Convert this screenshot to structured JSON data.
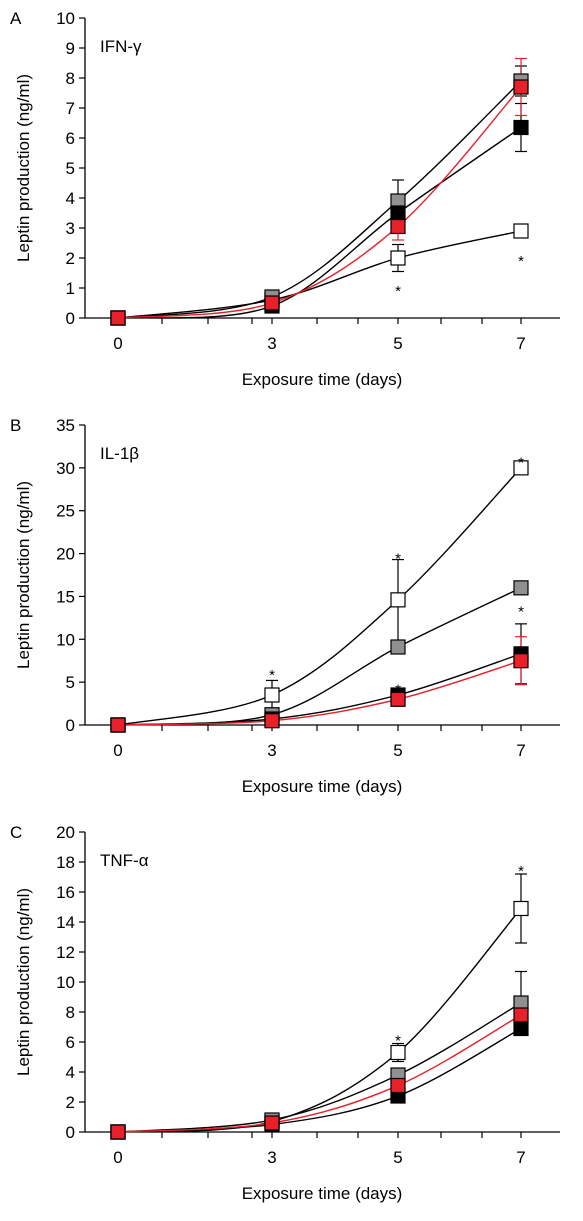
{
  "chart_data": [
    {
      "type": "line",
      "panel_letter": "A",
      "title": "IFN-γ",
      "xlabel": "Exposure time (days)",
      "ylabel": "Leptin production (ng/ml)",
      "x": [
        0,
        3,
        5,
        7
      ],
      "x_ticks": [
        0,
        3,
        5,
        7
      ],
      "y_ticks": [
        0,
        1,
        2,
        3,
        4,
        5,
        6,
        7,
        8,
        9,
        10
      ],
      "ylim": [
        0,
        10
      ],
      "grid": false,
      "series": [
        {
          "marker": "white",
          "values": [
            0,
            0.6,
            2.0,
            2.9
          ],
          "err": [
            0,
            0,
            0.45,
            0
          ]
        },
        {
          "marker": "gray",
          "values": [
            0,
            0.7,
            3.9,
            7.9
          ],
          "err": [
            0,
            0,
            0.7,
            0.5
          ]
        },
        {
          "marker": "black",
          "values": [
            0,
            0.4,
            3.5,
            6.35
          ],
          "err": [
            0,
            0,
            0.55,
            0.8
          ]
        },
        {
          "marker": "red",
          "values": [
            0,
            0.5,
            3.05,
            7.7
          ],
          "err": [
            0,
            0,
            0.45,
            0.95
          ]
        }
      ],
      "significance": [
        {
          "x": 5,
          "y": 1.0,
          "text": "*"
        },
        {
          "x": 7,
          "y": 2.0,
          "text": "*"
        }
      ]
    },
    {
      "type": "line",
      "panel_letter": "B",
      "title": "IL-1β",
      "xlabel": "Exposure time (days)",
      "ylabel": "Leptin production (ng/ml)",
      "x": [
        0,
        3,
        5,
        7
      ],
      "x_ticks": [
        0,
        3,
        5,
        7
      ],
      "y_ticks": [
        0,
        5,
        10,
        15,
        20,
        25,
        30,
        35
      ],
      "ylim": [
        0,
        35
      ],
      "grid": false,
      "series": [
        {
          "marker": "white",
          "values": [
            0,
            3.5,
            14.6,
            30.0
          ],
          "err": [
            0,
            1.7,
            4.7,
            0
          ]
        },
        {
          "marker": "gray",
          "values": [
            0,
            1.2,
            9.1,
            16.0
          ],
          "err": [
            0,
            0,
            0.6,
            0
          ]
        },
        {
          "marker": "black",
          "values": [
            0,
            0.7,
            3.5,
            8.3
          ],
          "err": [
            0,
            0,
            0,
            3.5
          ]
        },
        {
          "marker": "red",
          "values": [
            0,
            0.5,
            3.0,
            7.5
          ],
          "err": [
            0,
            0,
            0,
            2.8
          ]
        }
      ],
      "significance": [
        {
          "x": 3,
          "y": 6.2,
          "text": "*"
        },
        {
          "x": 5,
          "y": 19.8,
          "text": "*"
        },
        {
          "x": 5,
          "y": 4.5,
          "text": "*"
        },
        {
          "x": 7,
          "y": 31.0,
          "text": "*"
        },
        {
          "x": 7,
          "y": 13.6,
          "text": "*"
        }
      ]
    },
    {
      "type": "line",
      "panel_letter": "C",
      "title": "TNF-α",
      "xlabel": "Exposure time (days)",
      "ylabel": "Leptin production (ng/ml)",
      "x": [
        0,
        3,
        5,
        7
      ],
      "x_ticks": [
        0,
        3,
        5,
        7
      ],
      "y_ticks": [
        0,
        2,
        4,
        6,
        8,
        10,
        12,
        14,
        16,
        18,
        20
      ],
      "ylim": [
        0,
        20
      ],
      "grid": false,
      "series": [
        {
          "marker": "white",
          "values": [
            0,
            0.7,
            5.3,
            14.9
          ],
          "err": [
            0,
            0,
            0.6,
            2.3
          ]
        },
        {
          "marker": "gray",
          "values": [
            0,
            0.8,
            3.8,
            8.6
          ],
          "err": [
            0,
            0,
            0,
            2.1
          ]
        },
        {
          "marker": "black",
          "values": [
            0,
            0.5,
            2.4,
            6.9
          ],
          "err": [
            0,
            0,
            0,
            0
          ]
        },
        {
          "marker": "red",
          "values": [
            0,
            0.6,
            3.1,
            7.8
          ],
          "err": [
            0,
            0,
            0,
            0
          ]
        }
      ],
      "significance": [
        {
          "x": 5,
          "y": 6.3,
          "text": "*"
        },
        {
          "x": 7,
          "y": 17.6,
          "text": "*"
        }
      ]
    }
  ],
  "colors": {
    "white": "#ffffff",
    "gray": "#909090",
    "black": "#000000",
    "red": "#e8202a",
    "line": "#000000",
    "red_line": "#e8202a"
  }
}
